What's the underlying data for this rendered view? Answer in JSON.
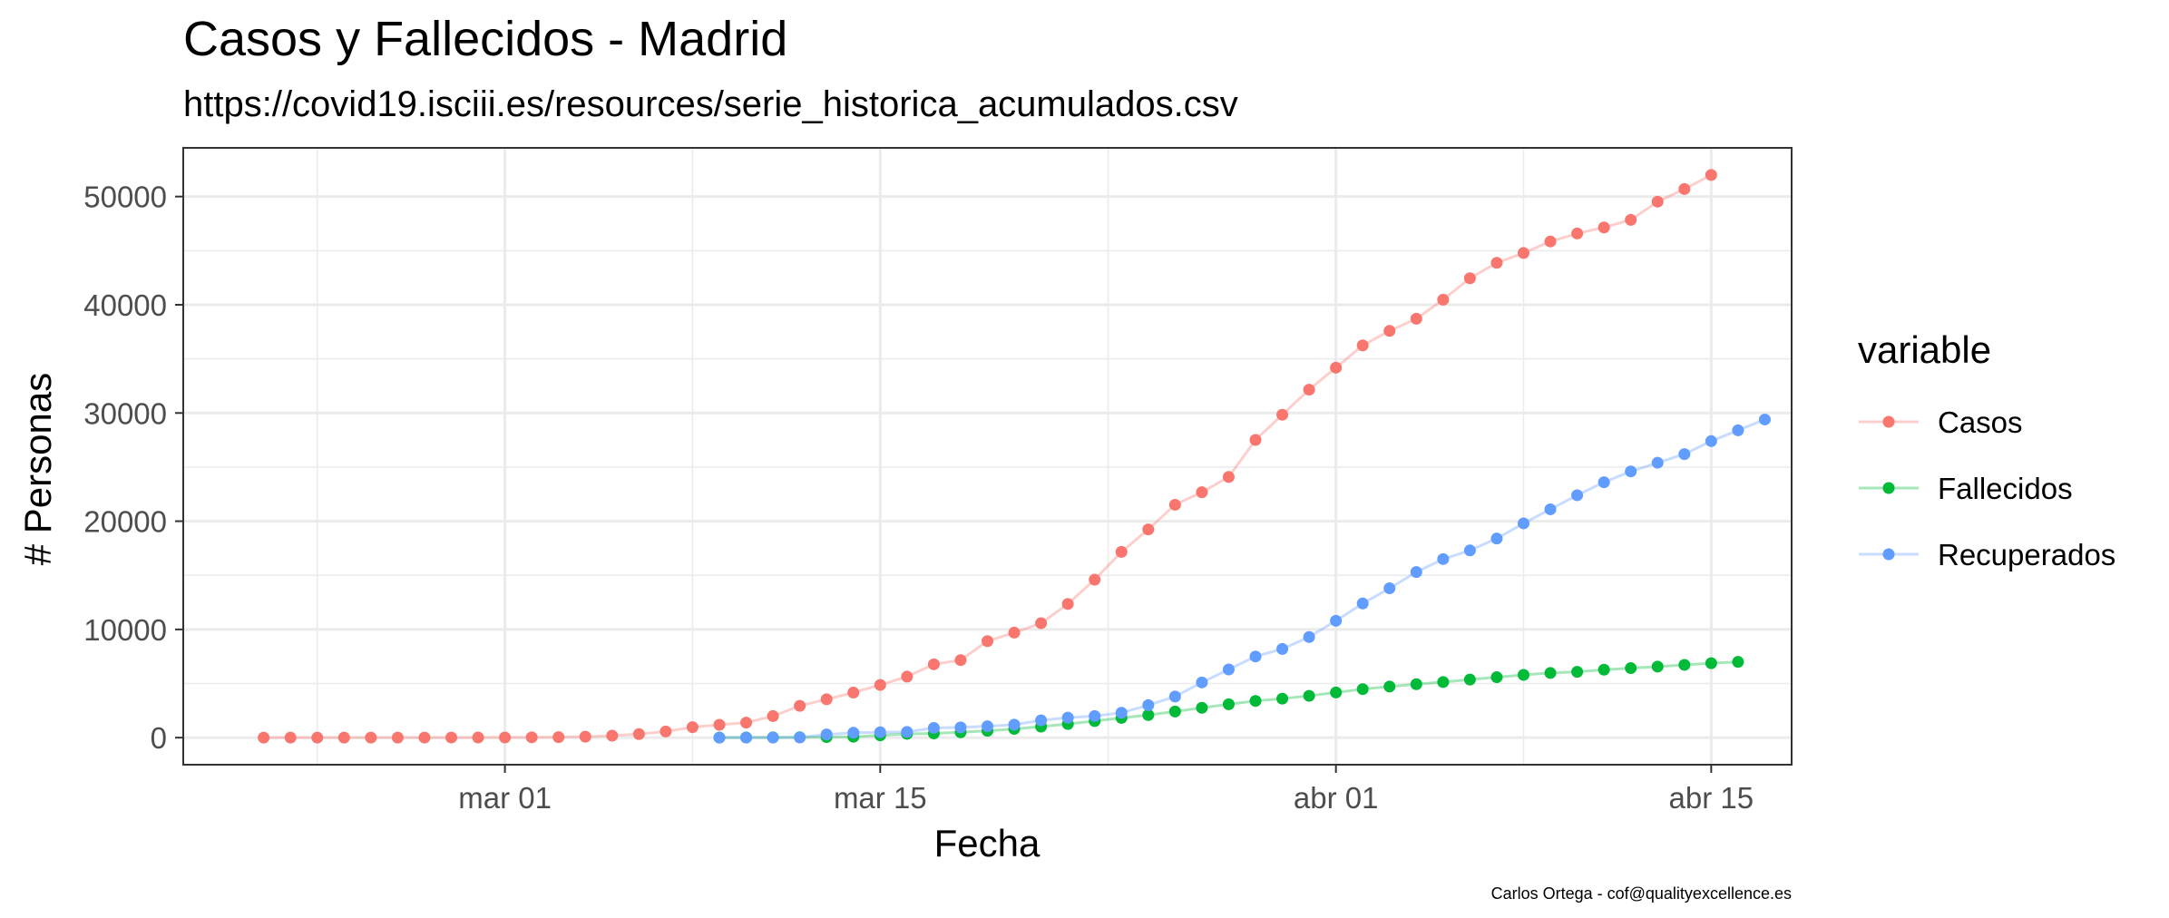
{
  "chart_data": {
    "type": "line",
    "title": "Casos y Fallecidos - Madrid",
    "subtitle": "https://covid19.isciii.es/resources/serie_historica_acumulados.csv",
    "xlabel": "Fecha",
    "ylabel": "# Personas",
    "caption": "Carlos Ortega - cof@qualityexcellence.es",
    "legend_title": "variable",
    "legend_position": "right",
    "grid": true,
    "x_axis": {
      "type": "date",
      "range": [
        "2020-02-18",
        "2020-04-18"
      ]
    },
    "y_axis": {
      "range": [
        -2500,
        54500
      ]
    },
    "x_ticks": [
      {
        "date": "2020-03-01",
        "label": "mar 01"
      },
      {
        "date": "2020-03-15",
        "label": "mar 15"
      },
      {
        "date": "2020-04-01",
        "label": "abr 01"
      },
      {
        "date": "2020-04-15",
        "label": "abr 15"
      }
    ],
    "y_ticks": [
      0,
      10000,
      20000,
      30000,
      40000,
      50000
    ],
    "series": [
      {
        "name": "Casos",
        "color": "#F8766D",
        "start_date": "2020-02-21",
        "values": [
          1,
          1,
          1,
          2,
          3,
          5,
          7,
          8,
          10,
          15,
          29,
          45,
          90,
          180,
          328,
          571,
          967,
          1190,
          1388,
          1990,
          2940,
          3544,
          4165,
          4871,
          5637,
          6777,
          7165,
          8921,
          9702,
          10575,
          12352,
          14597,
          17166,
          19243,
          21520,
          22677,
          24090,
          27509,
          29840,
          32155,
          34188,
          36249,
          37584,
          38707,
          40469,
          42450,
          43877,
          44783,
          45849,
          46587,
          47146,
          47848,
          49526,
          50694,
          51993
        ]
      },
      {
        "name": "Fallecidos",
        "color": "#00BA38",
        "start_date": "2020-03-09",
        "values": [
          8,
          16,
          21,
          31,
          56,
          81,
          213,
          355,
          390,
          498,
          628,
          804,
          1021,
          1263,
          1535,
          1825,
          2090,
          2412,
          2757,
          3082,
          3392,
          3603,
          3865,
          4175,
          4483,
          4723,
          4941,
          5136,
          5371,
          5586,
          5800,
          5972,
          6084,
          6278,
          6423,
          6568,
          6724,
          6877,
          7000
        ]
      },
      {
        "name": "Recuperados",
        "color": "#619CFF",
        "start_date": "2020-03-09",
        "values": [
          1,
          1,
          5,
          14,
          300,
          450,
          500,
          530,
          900,
          950,
          1050,
          1200,
          1600,
          1850,
          2000,
          2300,
          3000,
          3800,
          5100,
          6300,
          7500,
          8200,
          9300,
          10800,
          12400,
          13800,
          15300,
          16500,
          17300,
          18400,
          19800,
          21100,
          22400,
          23600,
          24600,
          25400,
          26200,
          27400,
          28400,
          29400
        ]
      }
    ]
  }
}
